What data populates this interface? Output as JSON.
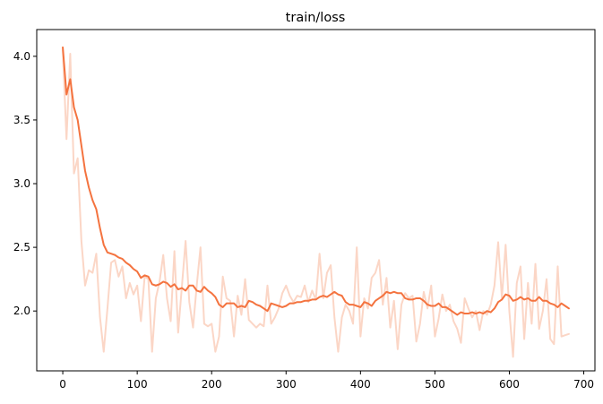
{
  "chart_data": {
    "type": "line",
    "title": "train/loss",
    "xlabel": "",
    "ylabel": "",
    "xlim": [
      -35,
      715
    ],
    "ylim": [
      1.53,
      4.21
    ],
    "xticks": [
      0,
      100,
      200,
      300,
      400,
      500,
      600,
      700
    ],
    "xtick_labels": [
      "0",
      "100",
      "200",
      "300",
      "400",
      "500",
      "600",
      "700"
    ],
    "yticks": [
      2.0,
      2.5,
      3.0,
      3.5,
      4.0
    ],
    "ytick_labels": [
      "2.0",
      "2.5",
      "3.0",
      "3.5",
      "4.0"
    ],
    "grid": false,
    "colors": {
      "smoothed": "#f4733f",
      "raw": "#fbd6c6"
    },
    "series": [
      {
        "role": "raw",
        "x": [
          0,
          5,
          10,
          15,
          20,
          25,
          30,
          35,
          40,
          45,
          50,
          55,
          60,
          65,
          70,
          75,
          80,
          85,
          90,
          95,
          100,
          105,
          110,
          115,
          120,
          125,
          130,
          135,
          140,
          145,
          150,
          155,
          160,
          165,
          170,
          175,
          180,
          185,
          190,
          195,
          200,
          205,
          210,
          215,
          220,
          225,
          230,
          235,
          240,
          245,
          250,
          255,
          260,
          265,
          270,
          275,
          280,
          285,
          290,
          295,
          300,
          305,
          310,
          315,
          320,
          325,
          330,
          335,
          340,
          345,
          350,
          355,
          360,
          365,
          370,
          375,
          380,
          385,
          390,
          395,
          400,
          405,
          410,
          415,
          420,
          425,
          430,
          435,
          440,
          445,
          450,
          455,
          460,
          465,
          470,
          475,
          480,
          485,
          490,
          495,
          500,
          505,
          510,
          515,
          520,
          525,
          530,
          535,
          540,
          545,
          550,
          555,
          560,
          565,
          570,
          575,
          580,
          585,
          590,
          595,
          600,
          605,
          610,
          615,
          620,
          625,
          630,
          635,
          640,
          645,
          650,
          655,
          660,
          665,
          670,
          675,
          680
        ],
        "y": [
          4.05,
          3.35,
          4.02,
          3.08,
          3.2,
          2.55,
          2.2,
          2.32,
          2.3,
          2.45,
          1.95,
          1.68,
          2.02,
          2.38,
          2.4,
          2.27,
          2.35,
          2.1,
          2.22,
          2.13,
          2.2,
          1.92,
          2.27,
          2.25,
          1.68,
          2.1,
          2.23,
          2.44,
          2.1,
          1.92,
          2.47,
          1.83,
          2.19,
          2.55,
          2.07,
          1.87,
          2.2,
          2.5,
          1.9,
          1.88,
          1.9,
          1.68,
          1.8,
          2.27,
          2.1,
          2.08,
          1.8,
          2.12,
          1.97,
          2.25,
          1.93,
          1.9,
          1.87,
          1.9,
          1.88,
          2.2,
          1.9,
          1.95,
          2.02,
          2.14,
          2.2,
          2.12,
          2.07,
          2.12,
          2.11,
          2.2,
          2.07,
          2.16,
          2.09,
          2.45,
          2.1,
          2.3,
          2.36,
          1.95,
          1.68,
          1.95,
          2.05,
          2.0,
          1.9,
          2.5,
          1.8,
          2.1,
          2.02,
          2.26,
          2.3,
          2.4,
          2.05,
          2.26,
          1.87,
          2.08,
          1.7,
          2.05,
          2.14,
          2.1,
          2.12,
          1.76,
          1.9,
          2.15,
          2.02,
          2.2,
          1.8,
          1.94,
          2.13,
          2.0,
          2.05,
          1.92,
          1.86,
          1.75,
          2.1,
          2.02,
          1.95,
          2.0,
          1.85,
          2.0,
          1.97,
          2.05,
          2.2,
          2.54,
          2.1,
          2.52,
          2.0,
          1.64,
          2.22,
          2.35,
          1.78,
          2.22,
          1.9,
          2.37,
          1.86,
          2.0,
          2.25,
          1.78,
          1.74,
          2.35,
          1.8,
          1.81,
          1.82
        ]
      },
      {
        "role": "smoothed",
        "x": [
          0,
          5,
          10,
          15,
          20,
          25,
          30,
          35,
          40,
          45,
          50,
          55,
          60,
          65,
          70,
          75,
          80,
          85,
          90,
          95,
          100,
          105,
          110,
          115,
          120,
          125,
          130,
          135,
          140,
          145,
          150,
          155,
          160,
          165,
          170,
          175,
          180,
          185,
          190,
          195,
          200,
          205,
          210,
          215,
          220,
          225,
          230,
          235,
          240,
          245,
          250,
          255,
          260,
          265,
          270,
          275,
          280,
          285,
          290,
          295,
          300,
          305,
          310,
          315,
          320,
          325,
          330,
          335,
          340,
          345,
          350,
          355,
          360,
          365,
          370,
          375,
          380,
          385,
          390,
          395,
          400,
          405,
          410,
          415,
          420,
          425,
          430,
          435,
          440,
          445,
          450,
          455,
          460,
          465,
          470,
          475,
          480,
          485,
          490,
          495,
          500,
          505,
          510,
          515,
          520,
          525,
          530,
          535,
          540,
          545,
          550,
          555,
          560,
          565,
          570,
          575,
          580,
          585,
          590,
          595,
          600,
          605,
          610,
          615,
          620,
          625,
          630,
          635,
          640,
          645,
          650,
          655,
          660,
          665,
          670,
          675,
          680
        ],
        "y": [
          4.07,
          3.7,
          3.82,
          3.6,
          3.5,
          3.3,
          3.1,
          2.97,
          2.87,
          2.8,
          2.65,
          2.52,
          2.46,
          2.45,
          2.44,
          2.42,
          2.41,
          2.38,
          2.36,
          2.33,
          2.31,
          2.26,
          2.28,
          2.27,
          2.21,
          2.2,
          2.21,
          2.23,
          2.22,
          2.19,
          2.21,
          2.17,
          2.18,
          2.16,
          2.2,
          2.2,
          2.16,
          2.15,
          2.19,
          2.16,
          2.14,
          2.11,
          2.05,
          2.03,
          2.06,
          2.06,
          2.06,
          2.03,
          2.04,
          2.03,
          2.08,
          2.07,
          2.05,
          2.04,
          2.02,
          2.0,
          2.06,
          2.05,
          2.04,
          2.03,
          2.04,
          2.06,
          2.06,
          2.07,
          2.07,
          2.08,
          2.08,
          2.09,
          2.09,
          2.11,
          2.12,
          2.11,
          2.13,
          2.15,
          2.13,
          2.12,
          2.07,
          2.05,
          2.05,
          2.04,
          2.03,
          2.07,
          2.06,
          2.04,
          2.08,
          2.1,
          2.12,
          2.15,
          2.14,
          2.15,
          2.14,
          2.14,
          2.1,
          2.09,
          2.09,
          2.1,
          2.1,
          2.08,
          2.05,
          2.04,
          2.04,
          2.06,
          2.03,
          2.03,
          2.01,
          1.99,
          1.97,
          1.99,
          1.98,
          1.98,
          1.99,
          1.98,
          1.99,
          1.98,
          2.0,
          1.99,
          2.02,
          2.07,
          2.09,
          2.13,
          2.12,
          2.08,
          2.09,
          2.11,
          2.09,
          2.1,
          2.08,
          2.08,
          2.11,
          2.08,
          2.08,
          2.06,
          2.05,
          2.03,
          2.06,
          2.04,
          2.02
        ]
      }
    ]
  }
}
